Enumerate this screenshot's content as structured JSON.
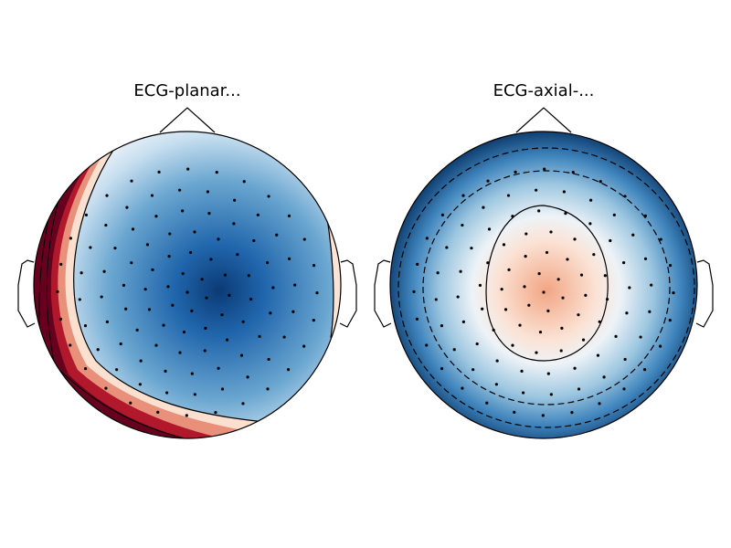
{
  "chart_data": [
    {
      "type": "topomap",
      "title": "ECG-planar..."
    },
    {
      "type": "topomap",
      "title": "ECG-axial-..."
    }
  ]
}
